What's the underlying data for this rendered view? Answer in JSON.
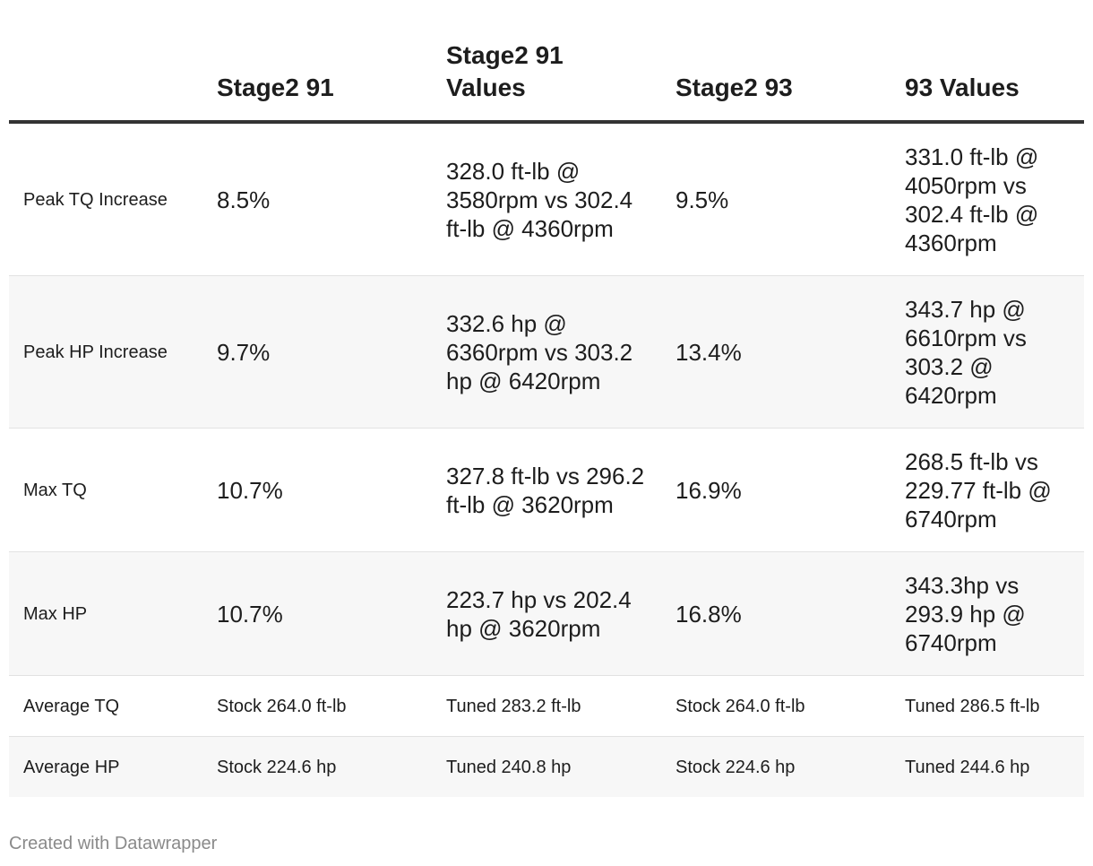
{
  "chart_data": {
    "type": "table",
    "columns": [
      "",
      "Stage2 91",
      "Stage2 91 Values",
      "Stage2 93",
      "93 Values"
    ],
    "rows": [
      {
        "label": "Peak TQ Increase",
        "cells": [
          "8.5%",
          "328.0 ft-lb @ 3580rpm vs 302.4 ft-lb @ 4360rpm",
          "9.5%",
          "331.0 ft-lb @ 4050rpm vs 302.4 ft-lb @ 4360rpm"
        ]
      },
      {
        "label": "Peak HP Increase",
        "cells": [
          "9.7%",
          "332.6 hp @ 6360rpm vs 303.2 hp @ 6420rpm",
          "13.4%",
          "343.7 hp @ 6610rpm vs 303.2 @ 6420rpm"
        ]
      },
      {
        "label": "Max TQ",
        "cells": [
          "10.7%",
          "327.8 ft-lb vs 296.2 ft-lb @ 3620rpm",
          "16.9%",
          "268.5 ft-lb vs 229.77 ft-lb @ 6740rpm"
        ]
      },
      {
        "label": "Max HP",
        "cells": [
          "10.7%",
          "223.7 hp vs 202.4 hp @ 3620rpm",
          "16.8%",
          "343.3hp vs 293.9 hp @ 6740rpm"
        ]
      }
    ],
    "footer_rows": [
      {
        "label": "Average TQ",
        "cells": [
          "Stock 264.0 ft-lb",
          "Tuned 283.2 ft-lb",
          "Stock 264.0 ft-lb",
          "Tuned 286.5 ft-lb"
        ]
      },
      {
        "label": "Average HP",
        "cells": [
          "Stock 224.6 hp",
          "Tuned 240.8 hp",
          "Stock 224.6 hp",
          "Tuned 244.6 hp"
        ]
      }
    ]
  },
  "credit": "Created with Datawrapper"
}
